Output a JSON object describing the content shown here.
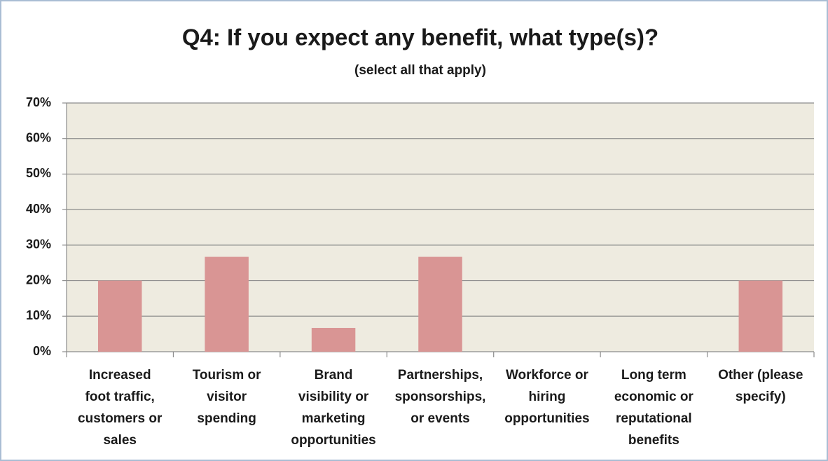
{
  "chart_data": {
    "type": "bar",
    "title": "Q4: If you expect any benefit, what type(s)?",
    "subtitle": "(select all that apply)",
    "categories": [
      [
        "Increased",
        "foot traffic,",
        "customers or",
        "sales"
      ],
      [
        "Tourism or",
        "visitor",
        "spending"
      ],
      [
        "Brand",
        "visibility or",
        "marketing",
        "opportunities"
      ],
      [
        "Partnerships,",
        "sponsorships,",
        "or events"
      ],
      [
        "Workforce or",
        "hiring",
        "opportunities"
      ],
      [
        "Long term",
        "economic or",
        "reputational",
        "benefits"
      ],
      [
        "Other (please",
        "specify)"
      ]
    ],
    "values": [
      20,
      26.7,
      6.7,
      26.7,
      0,
      0,
      20
    ],
    "color": "#d99594",
    "ylim": [
      0,
      70
    ],
    "yticks": [
      {
        "value": 0,
        "label": "0%"
      },
      {
        "value": 10,
        "label": "10%"
      },
      {
        "value": 20,
        "label": "20%"
      },
      {
        "value": 30,
        "label": "30%"
      },
      {
        "value": 40,
        "label": "40%"
      },
      {
        "value": 50,
        "label": "50%"
      },
      {
        "value": 60,
        "label": "60%"
      },
      {
        "value": 70,
        "label": "70%"
      }
    ],
    "grid": true
  }
}
